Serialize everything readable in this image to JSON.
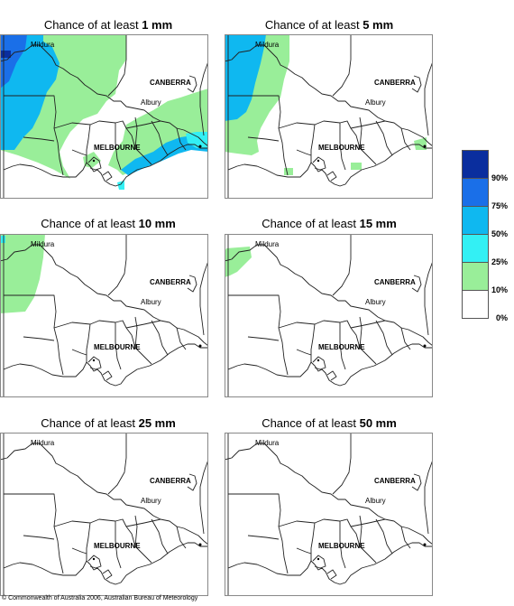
{
  "panels": [
    {
      "title_prefix": "Chance of at least ",
      "amount": "1 mm"
    },
    {
      "title_prefix": "Chance of at least ",
      "amount": "5 mm"
    },
    {
      "title_prefix": "Chance of at least ",
      "amount": "10 mm"
    },
    {
      "title_prefix": "Chance of at least ",
      "amount": "15 mm"
    },
    {
      "title_prefix": "Chance of at least ",
      "amount": "25 mm"
    },
    {
      "title_prefix": "Chance of at least ",
      "amount": "50 mm"
    }
  ],
  "places": {
    "mildura": "Mildura",
    "canberra": "CANBERRA",
    "albury": "Albury",
    "melbourne": "MELBOURNE"
  },
  "legend": {
    "colors": [
      "#0a2e9e",
      "#1a6fe8",
      "#0fb8f0",
      "#33f0f4",
      "#99ee99",
      "#ffffff"
    ],
    "labels": [
      "90%",
      "75%",
      "50%",
      "25%",
      "10%",
      "0%"
    ]
  },
  "copyright": "© Commonwealth of Australia 2006, Australian Bureau of Meteorology"
}
